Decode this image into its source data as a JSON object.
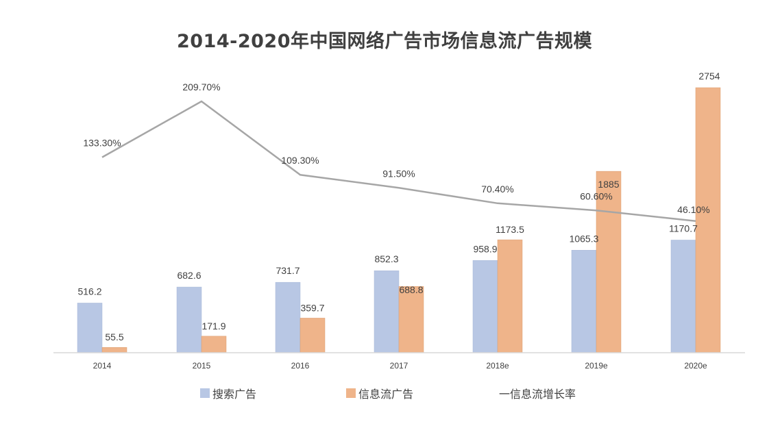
{
  "title": "2014-2020年中国网络广告市场信息流广告规模",
  "colors": {
    "search": "#b8c7e4",
    "search_edge": "#a8b8d8",
    "feed": "#efb48a",
    "feed_edge": "#d99a6c",
    "growth": "#a6a6a6",
    "axis": "#d9d9d9",
    "text": "#404040"
  },
  "legend": {
    "search": "搜索广告",
    "feed": "信息流广告",
    "growth": "一信息流增长率"
  },
  "chart_data": {
    "type": "bar",
    "categories": [
      "2014",
      "2015",
      "2016",
      "2017",
      "2018e",
      "2019e",
      "2020e"
    ],
    "series": [
      {
        "name": "搜索广告",
        "type": "bar",
        "values": [
          516.2,
          682.6,
          731.7,
          852.3,
          958.9,
          1065.3,
          1170.7
        ],
        "labels": [
          "516.2",
          "682.6",
          "731.7",
          "852.3",
          "958.9",
          "1065.3",
          "1170.7"
        ]
      },
      {
        "name": "信息流广告",
        "type": "bar",
        "values": [
          55.5,
          171.9,
          359.7,
          688.8,
          1173.5,
          1885,
          2754
        ],
        "labels": [
          "55.5",
          "171.9",
          "359.7",
          "688.8",
          "1173.5",
          "1885",
          "2754"
        ]
      },
      {
        "name": "信息流增长率",
        "type": "line",
        "values": [
          133.3,
          209.7,
          109.3,
          91.5,
          70.4,
          60.6,
          46.1
        ],
        "labels": [
          "133.30%",
          "209.70%",
          "109.30%",
          "91.50%",
          "70.40%",
          "60.60%",
          "46.10%"
        ]
      }
    ],
    "ylim": [
      0,
      2754
    ],
    "y2lim": [
      0,
      209.7
    ],
    "legend_position": "bottom",
    "grid": false
  }
}
